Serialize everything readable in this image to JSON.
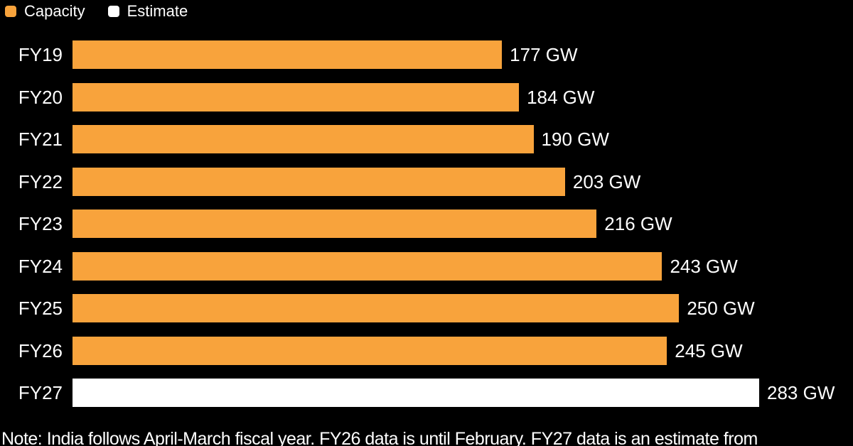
{
  "colors": {
    "background": "#000000",
    "bar_capacity": "#F8A33C",
    "bar_estimate": "#FFFFFF",
    "text": "#FFFFFF"
  },
  "legend": {
    "items": [
      {
        "label": "Capacity",
        "series": "Capacity",
        "color": "#F8A33C"
      },
      {
        "label": "Estimate",
        "series": "Estimate",
        "color": "#FFFFFF"
      }
    ]
  },
  "chart_data": {
    "type": "bar",
    "orientation": "horizontal",
    "unit": "GW",
    "max_value": 283,
    "xlim": [
      0,
      283
    ],
    "grid": false,
    "legend_position": "top-left",
    "categories": [
      "FY19",
      "FY20",
      "FY21",
      "FY22",
      "FY23",
      "FY24",
      "FY25",
      "FY26",
      "FY27"
    ],
    "values": [
      177,
      184,
      190,
      203,
      216,
      243,
      250,
      245,
      283
    ],
    "rows": [
      {
        "category": "FY19",
        "value": 177,
        "label": "177 GW",
        "series": "Capacity"
      },
      {
        "category": "FY20",
        "value": 184,
        "label": "184 GW",
        "series": "Capacity"
      },
      {
        "category": "FY21",
        "value": 190,
        "label": "190 GW",
        "series": "Capacity"
      },
      {
        "category": "FY22",
        "value": 203,
        "label": "203 GW",
        "series": "Capacity"
      },
      {
        "category": "FY23",
        "value": 216,
        "label": "216 GW",
        "series": "Capacity"
      },
      {
        "category": "FY24",
        "value": 243,
        "label": "243 GW",
        "series": "Capacity"
      },
      {
        "category": "FY25",
        "value": 250,
        "label": "250 GW",
        "series": "Capacity"
      },
      {
        "category": "FY26",
        "value": 245,
        "label": "245 GW",
        "series": "Capacity"
      },
      {
        "category": "FY27",
        "value": 283,
        "label": "283 GW",
        "series": "Estimate"
      }
    ]
  },
  "note": {
    "text": "Note: India follows April-March fiscal year. FY26 data is until February. FY27 data is an estimate from"
  }
}
